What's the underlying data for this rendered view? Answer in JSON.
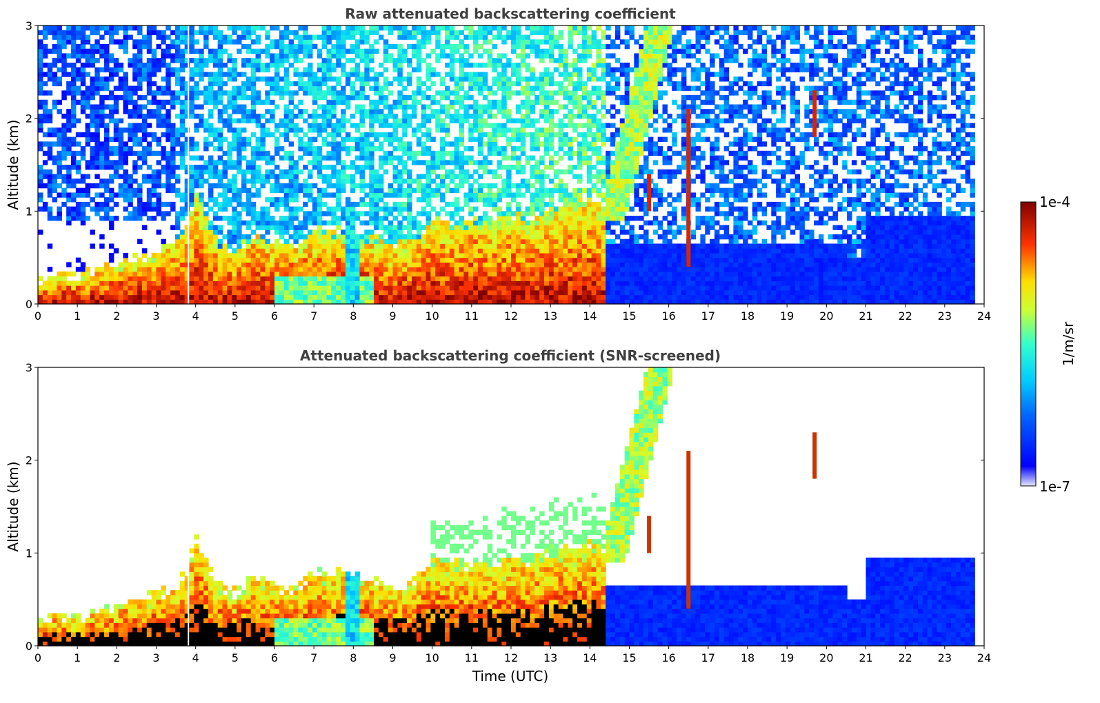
{
  "chart_data": [
    {
      "type": "heatmap",
      "title": "Raw attenuated backscattering coefficient",
      "xlabel": "",
      "ylabel": "Altitude (km)",
      "xlim": [
        0,
        24
      ],
      "ylim": [
        0,
        3
      ],
      "xticks": [
        0,
        1,
        2,
        3,
        4,
        5,
        6,
        7,
        8,
        9,
        10,
        11,
        12,
        13,
        14,
        15,
        16,
        17,
        18,
        19,
        20,
        21,
        22,
        23,
        24
      ],
      "yticks": [
        0,
        1,
        2,
        3
      ],
      "screened": false
    },
    {
      "type": "heatmap",
      "title": "Attenuated backscattering coefficient (SNR-screened)",
      "xlabel": "Time (UTC)",
      "ylabel": "Altitude (km)",
      "xlim": [
        0,
        24
      ],
      "ylim": [
        0,
        3
      ],
      "xticks": [
        0,
        1,
        2,
        3,
        4,
        5,
        6,
        7,
        8,
        9,
        10,
        11,
        12,
        13,
        14,
        15,
        16,
        17,
        18,
        19,
        20,
        21,
        22,
        23,
        24
      ],
      "yticks": [
        0,
        1,
        2,
        3
      ],
      "screened": true
    }
  ],
  "colorbar": {
    "label": "1/m/sr",
    "max_label": "1e-4",
    "min_label": "1e-7",
    "scale": "log",
    "range": [
      1e-07,
      0.0001
    ],
    "colormap": "jet"
  },
  "boundary_layer_profile": {
    "hours": [
      0,
      0.5,
      1,
      1.5,
      2,
      2.5,
      3,
      3.5,
      3.8,
      4,
      4.5,
      5,
      5.5,
      6,
      6.5,
      7,
      7.5,
      8,
      8.5,
      9,
      9.5,
      10,
      10.5,
      11,
      11.5,
      12,
      12.5,
      13,
      13.5,
      14,
      14.4
    ],
    "top_km": [
      0.25,
      0.32,
      0.3,
      0.38,
      0.45,
      0.5,
      0.55,
      0.65,
      0.8,
      1.2,
      0.7,
      0.55,
      0.75,
      0.65,
      0.6,
      0.8,
      0.75,
      0.8,
      0.7,
      0.6,
      0.7,
      0.9,
      0.85,
      0.9,
      0.85,
      0.95,
      0.9,
      1.0,
      1.05,
      1.1,
      1.0
    ]
  },
  "features": [
    {
      "name": "rising-plume",
      "hours": [
        14.4,
        16.0
      ],
      "alt_km": [
        1.0,
        3.0
      ]
    },
    {
      "name": "spike-16-5",
      "hour": 16.5,
      "alt_km": [
        0.4,
        2.1
      ]
    },
    {
      "name": "spike-19-7",
      "hour": 19.7,
      "alt_km": [
        1.8,
        2.3
      ]
    },
    {
      "name": "spike-15-5",
      "hour": 15.5,
      "alt_km": [
        1.0,
        1.4
      ]
    }
  ]
}
